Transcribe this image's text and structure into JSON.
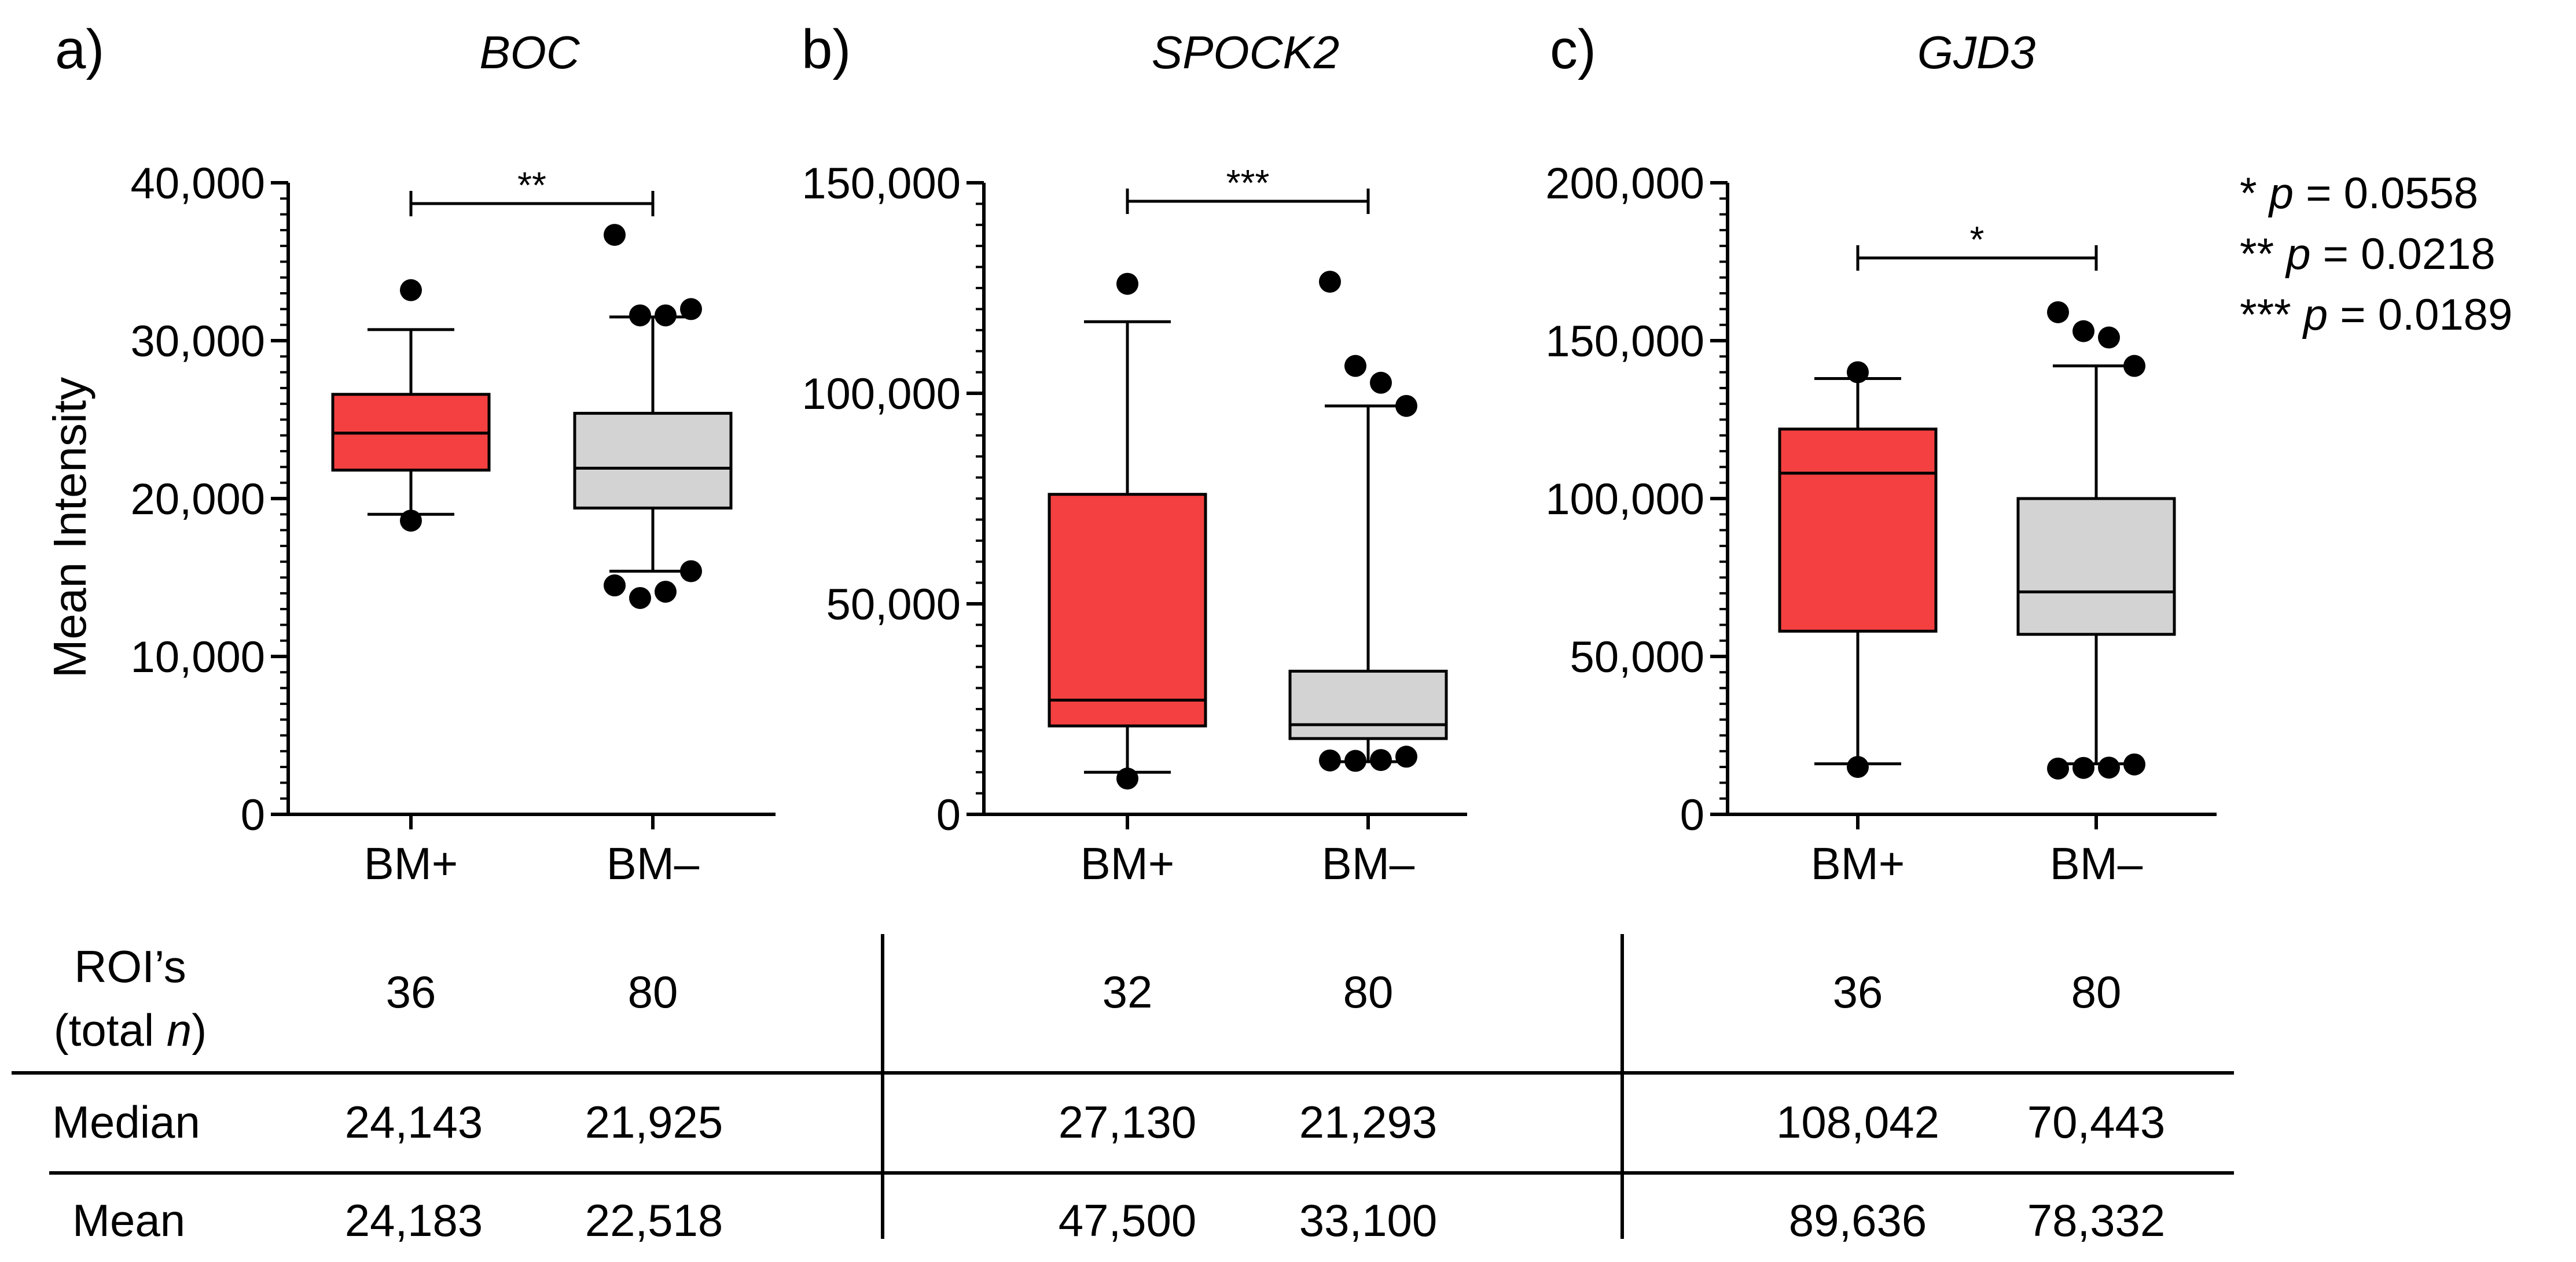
{
  "chart_data": [
    {
      "type": "box",
      "panel_label": "a)",
      "title": "BOC",
      "ylabel": "Mean Intensity",
      "ylim": [
        0,
        40000
      ],
      "yticks": [
        0,
        10000,
        20000,
        30000,
        40000
      ],
      "ytick_labels": [
        "0",
        "10,000",
        "20,000",
        "30,000",
        "40,000"
      ],
      "categories": [
        "BM+",
        "BM–"
      ],
      "boxes": [
        {
          "name": "BM+",
          "color": "#f44040",
          "q1": 21800,
          "median": 24143,
          "q3": 26600,
          "whisker_low": 19000,
          "whisker_high": 30700,
          "outliers": [
            33200,
            18600
          ]
        },
        {
          "name": "BM–",
          "color": "#d3d3d3",
          "q1": 19400,
          "median": 21925,
          "q3": 25400,
          "whisker_low": 15400,
          "whisker_high": 31500,
          "outliers": [
            36700,
            31600,
            31600,
            32000,
            14500,
            13700,
            14100,
            15400
          ]
        }
      ],
      "significance": "**"
    },
    {
      "type": "box",
      "panel_label": "b)",
      "title": "SPOCK2",
      "ylim": [
        0,
        150000
      ],
      "yticks": [
        0,
        50000,
        100000,
        150000
      ],
      "ytick_labels": [
        "0",
        "50,000",
        "100,000",
        "150,000"
      ],
      "categories": [
        "BM+",
        "BM–"
      ],
      "boxes": [
        {
          "name": "BM+",
          "color": "#f44040",
          "q1": 21000,
          "median": 27130,
          "q3": 76000,
          "whisker_low": 10000,
          "whisker_high": 117000,
          "outliers": [
            126000,
            8500
          ]
        },
        {
          "name": "BM–",
          "color": "#d3d3d3",
          "q1": 18000,
          "median": 21293,
          "q3": 34000,
          "whisker_low": 12500,
          "whisker_high": 97000,
          "outliers": [
            126500,
            106500,
            102500,
            97000,
            12800,
            12700,
            12900,
            13700
          ]
        }
      ],
      "significance": "***"
    },
    {
      "type": "box",
      "panel_label": "c)",
      "title": "GJD3",
      "ylim": [
        0,
        200000
      ],
      "yticks": [
        0,
        50000,
        100000,
        150000,
        200000
      ],
      "ytick_labels": [
        "0",
        "50,000",
        "100,000",
        "150,000",
        "200,000"
      ],
      "categories": [
        "BM+",
        "BM–"
      ],
      "boxes": [
        {
          "name": "BM+",
          "color": "#f44040",
          "q1": 58000,
          "median": 108042,
          "q3": 122000,
          "whisker_low": 16000,
          "whisker_high": 138000,
          "outliers": [
            140000,
            15000
          ]
        },
        {
          "name": "BM–",
          "color": "#d3d3d3",
          "q1": 57000,
          "median": 70443,
          "q3": 100000,
          "whisker_low": 16000,
          "whisker_high": 142000,
          "outliers": [
            159000,
            153000,
            151000,
            142000,
            14500,
            14700,
            14800,
            15800
          ]
        }
      ],
      "significance": "*"
    }
  ],
  "legend": [
    {
      "stars": "*",
      "p_label": "p",
      "rest": " = 0.0558"
    },
    {
      "stars": "**",
      "p_label": "p",
      "rest": " = 0.0218"
    },
    {
      "stars": "***",
      "p_label": "p",
      "rest": " = 0.0189"
    }
  ],
  "table": {
    "row_labels": {
      "rois_line1": "ROI’s",
      "rois_line2_prefix": "(total ",
      "rois_line2_n": "n",
      "rois_line2_suffix": ")",
      "median": "Median",
      "mean": "Mean"
    },
    "rois": [
      "36",
      "80",
      "32",
      "80",
      "36",
      "80"
    ],
    "median": [
      "24,143",
      "21,925",
      "27,130",
      "21,293",
      "108,042",
      "70,443"
    ],
    "mean": [
      "24,183",
      "22,518",
      "47,500",
      "33,100",
      "89,636",
      "78,332"
    ]
  }
}
